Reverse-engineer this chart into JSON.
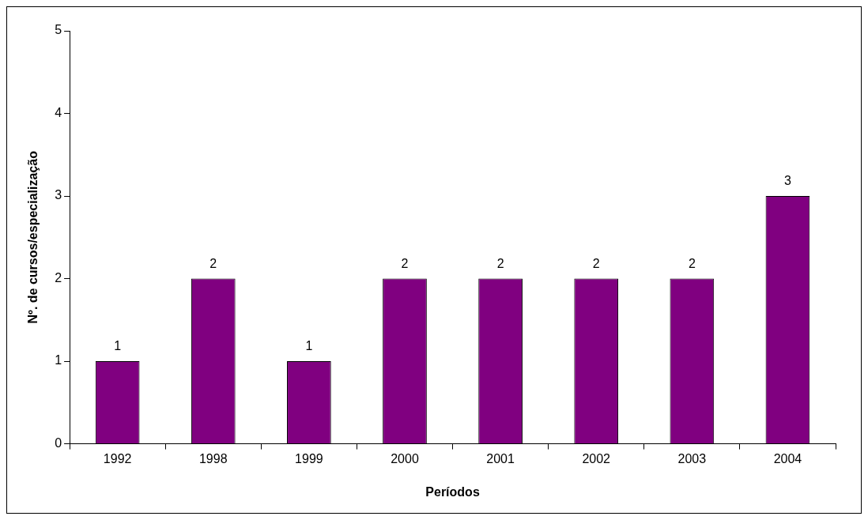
{
  "chart_data": {
    "type": "bar",
    "xlabel": "Períodos",
    "ylabel": "Nº. de cursos/especialização",
    "categories": [
      "1992",
      "1998",
      "1999",
      "2000",
      "2001",
      "2002",
      "2003",
      "2004"
    ],
    "values": [
      1,
      2,
      1,
      2,
      2,
      2,
      2,
      3
    ],
    "color": "#800080",
    "ylim": [
      0,
      5
    ],
    "yticks": [
      0,
      1,
      2,
      3,
      4,
      5
    ],
    "data_labels": true
  }
}
